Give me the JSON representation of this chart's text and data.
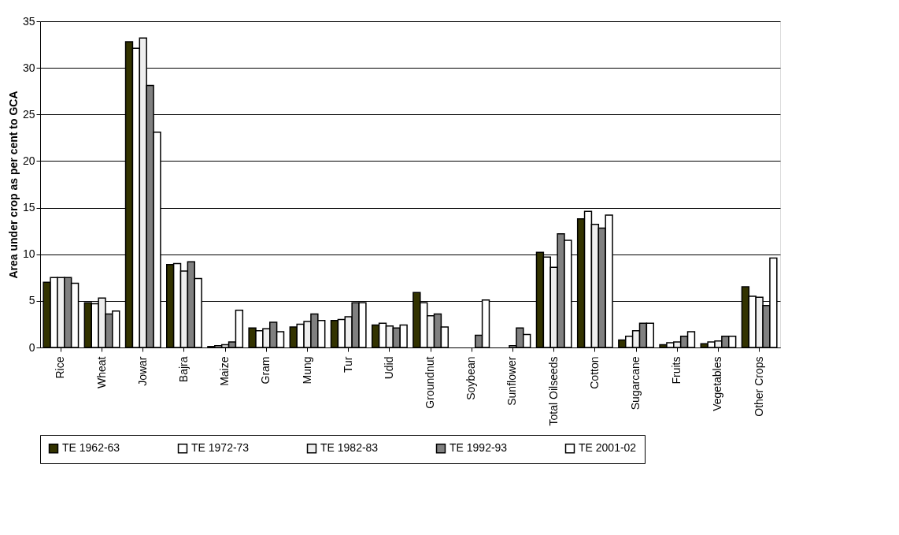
{
  "chart_data": {
    "type": "bar",
    "ylabel": "Area under crop as per cent to GCA",
    "categories": [
      "Rice",
      "Wheat",
      "Jowar",
      "Bajra",
      "Maize",
      "Gram",
      "Mung",
      "Tur",
      "Udid",
      "Groundnut",
      "Soybean",
      "Sunflower",
      "Total Oilseeds",
      "Cotton",
      "Sugarcane",
      "Fruits",
      "Vegetables",
      "Other Crops"
    ],
    "series": [
      {
        "name": "TE 1962-63",
        "color": "#333300",
        "values": [
          7.0,
          4.8,
          32.8,
          8.9,
          0.1,
          2.1,
          2.2,
          2.9,
          2.4,
          5.9,
          null,
          null,
          10.2,
          13.8,
          0.8,
          0.3,
          0.4,
          6.5
        ]
      },
      {
        "name": "TE 1972-73",
        "color": "#ffffff",
        "values": [
          7.5,
          4.7,
          32.1,
          9.0,
          0.2,
          1.8,
          2.5,
          3.0,
          2.6,
          4.8,
          null,
          null,
          9.7,
          14.6,
          1.2,
          0.5,
          0.6,
          5.5
        ]
      },
      {
        "name": "TE 1982-83",
        "color": "#eeeeee",
        "values": [
          7.5,
          5.3,
          33.2,
          8.2,
          0.3,
          2.0,
          2.8,
          3.3,
          2.3,
          3.4,
          null,
          0.2,
          8.6,
          13.2,
          1.8,
          0.6,
          0.7,
          5.4
        ]
      },
      {
        "name": "TE 1992-93",
        "color": "#808080",
        "values": [
          7.5,
          3.6,
          28.1,
          9.2,
          0.6,
          2.7,
          3.6,
          4.8,
          2.1,
          3.6,
          1.3,
          2.1,
          12.2,
          12.8,
          2.6,
          1.2,
          1.2,
          4.5
        ]
      },
      {
        "name": "TE 2001-02",
        "color": "#ffffff",
        "values": [
          6.9,
          3.9,
          23.1,
          7.4,
          4.0,
          1.7,
          2.9,
          4.8,
          2.4,
          2.2,
          5.1,
          1.4,
          11.5,
          14.2,
          2.6,
          1.7,
          1.2,
          9.6
        ]
      }
    ],
    "ylim": [
      0,
      35
    ],
    "yticks": [
      0,
      5,
      10,
      15,
      20,
      25,
      30,
      35
    ],
    "grid": "y",
    "legend": "bottom"
  }
}
